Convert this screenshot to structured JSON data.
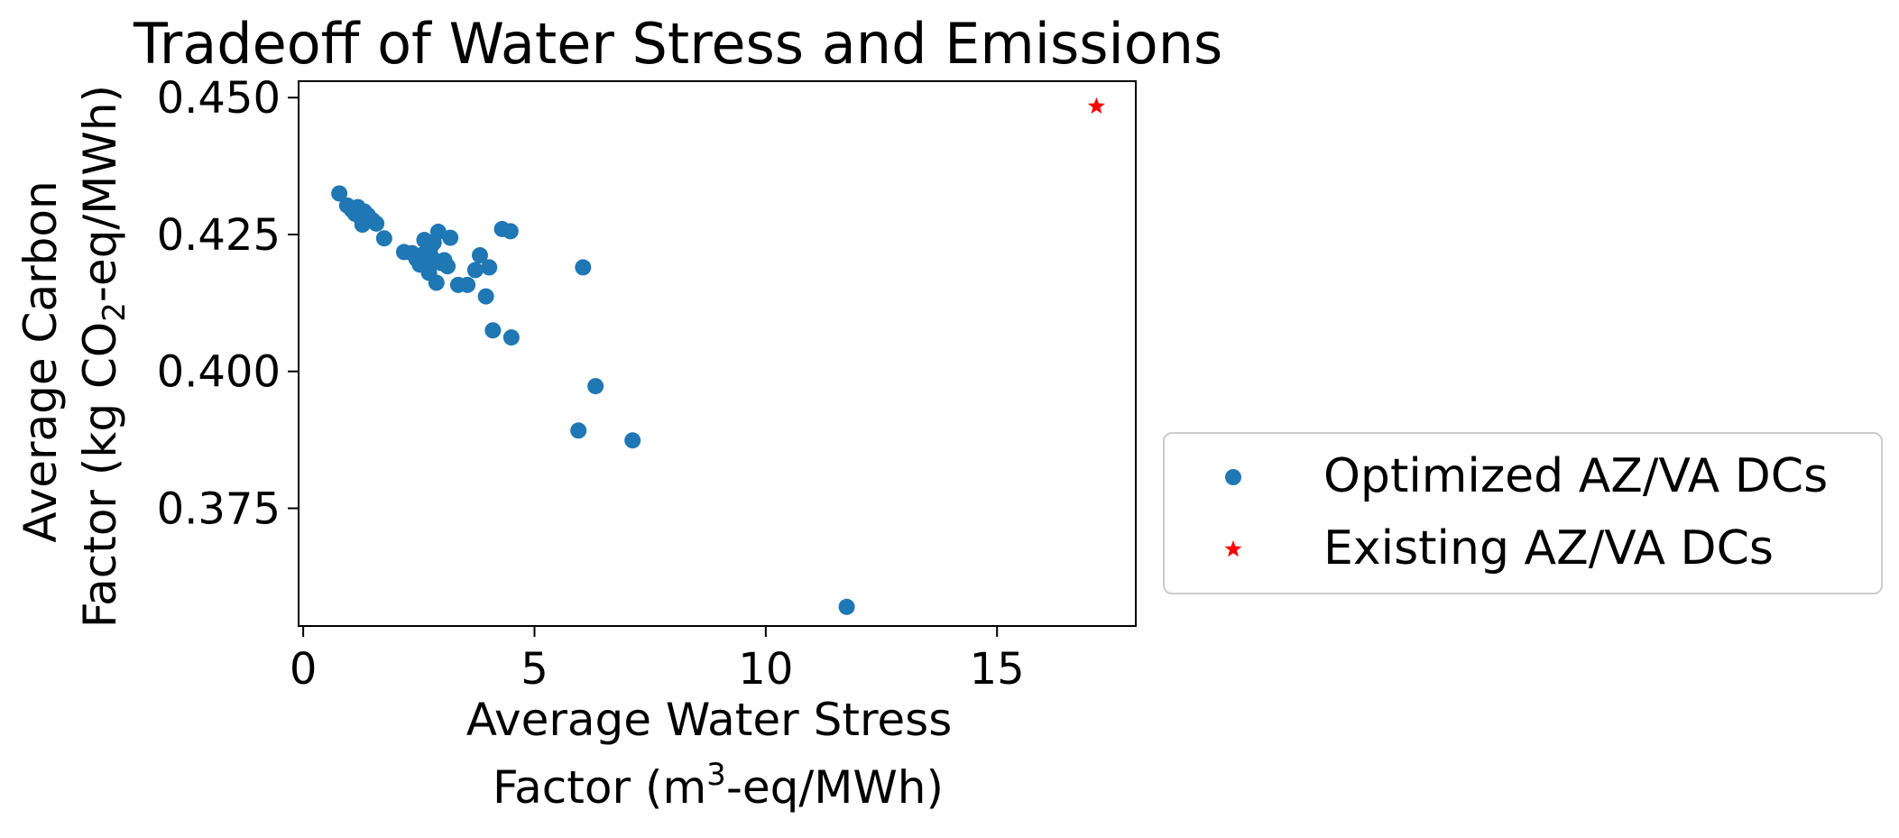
{
  "chart_data": {
    "type": "scatter",
    "title": "Tradeoff of Water Stress and Emissions",
    "xlabel_line1": "Average Water Stress",
    "xlabel_line2_pre": "Factor (m",
    "xlabel_line2_sup": "3",
    "xlabel_line2_post": "-eq/MWh)",
    "ylabel_line1": "Average Carbon",
    "ylabel_line2_pre": "Factor (kg CO",
    "ylabel_line2_sub": "2",
    "ylabel_line2_post": "-eq/MWh)",
    "xlim": [
      -0.1,
      18.0
    ],
    "ylim": [
      0.3535,
      0.453
    ],
    "xticks": [
      0,
      5,
      10,
      15
    ],
    "xtick_labels": [
      "0",
      "5",
      "10",
      "15"
    ],
    "yticks": [
      0.375,
      0.4,
      0.425,
      0.45
    ],
    "ytick_labels": [
      "0.375",
      "0.400",
      "0.425",
      "0.450"
    ],
    "grid": false,
    "legend_position": "right",
    "series": [
      {
        "name": "Optimized AZ/VA DCs",
        "marker": "circle",
        "color": "#1f77b4",
        "points": [
          [
            0.78,
            0.4325
          ],
          [
            0.95,
            0.4303
          ],
          [
            1.05,
            0.4295
          ],
          [
            1.12,
            0.4288
          ],
          [
            1.18,
            0.43
          ],
          [
            1.25,
            0.428
          ],
          [
            1.32,
            0.4292
          ],
          [
            1.28,
            0.4268
          ],
          [
            1.4,
            0.4285
          ],
          [
            1.5,
            0.4276
          ],
          [
            1.58,
            0.427
          ],
          [
            1.75,
            0.4243
          ],
          [
            2.18,
            0.4218
          ],
          [
            2.35,
            0.4216
          ],
          [
            2.45,
            0.4205
          ],
          [
            2.52,
            0.4195
          ],
          [
            2.6,
            0.4214
          ],
          [
            2.62,
            0.424
          ],
          [
            2.68,
            0.419
          ],
          [
            2.72,
            0.418
          ],
          [
            2.75,
            0.4226
          ],
          [
            2.78,
            0.4208
          ],
          [
            2.82,
            0.4235
          ],
          [
            2.85,
            0.42
          ],
          [
            2.88,
            0.4162
          ],
          [
            2.92,
            0.4255
          ],
          [
            2.98,
            0.4198
          ],
          [
            3.05,
            0.4203
          ],
          [
            3.12,
            0.4192
          ],
          [
            3.18,
            0.4244
          ],
          [
            3.35,
            0.4158
          ],
          [
            3.55,
            0.4158
          ],
          [
            3.72,
            0.4185
          ],
          [
            3.82,
            0.4212
          ],
          [
            3.95,
            0.4137
          ],
          [
            4.02,
            0.419
          ],
          [
            4.1,
            0.4075
          ],
          [
            4.3,
            0.426
          ],
          [
            4.48,
            0.4256
          ],
          [
            4.5,
            0.4062
          ],
          [
            5.95,
            0.3892
          ],
          [
            6.05,
            0.419
          ],
          [
            6.32,
            0.3973
          ],
          [
            7.12,
            0.3874
          ],
          [
            11.75,
            0.357
          ]
        ]
      },
      {
        "name": "Existing AZ/VA DCs",
        "marker": "star",
        "color": "#ff0000",
        "points": [
          [
            17.15,
            0.4484
          ]
        ]
      }
    ]
  }
}
